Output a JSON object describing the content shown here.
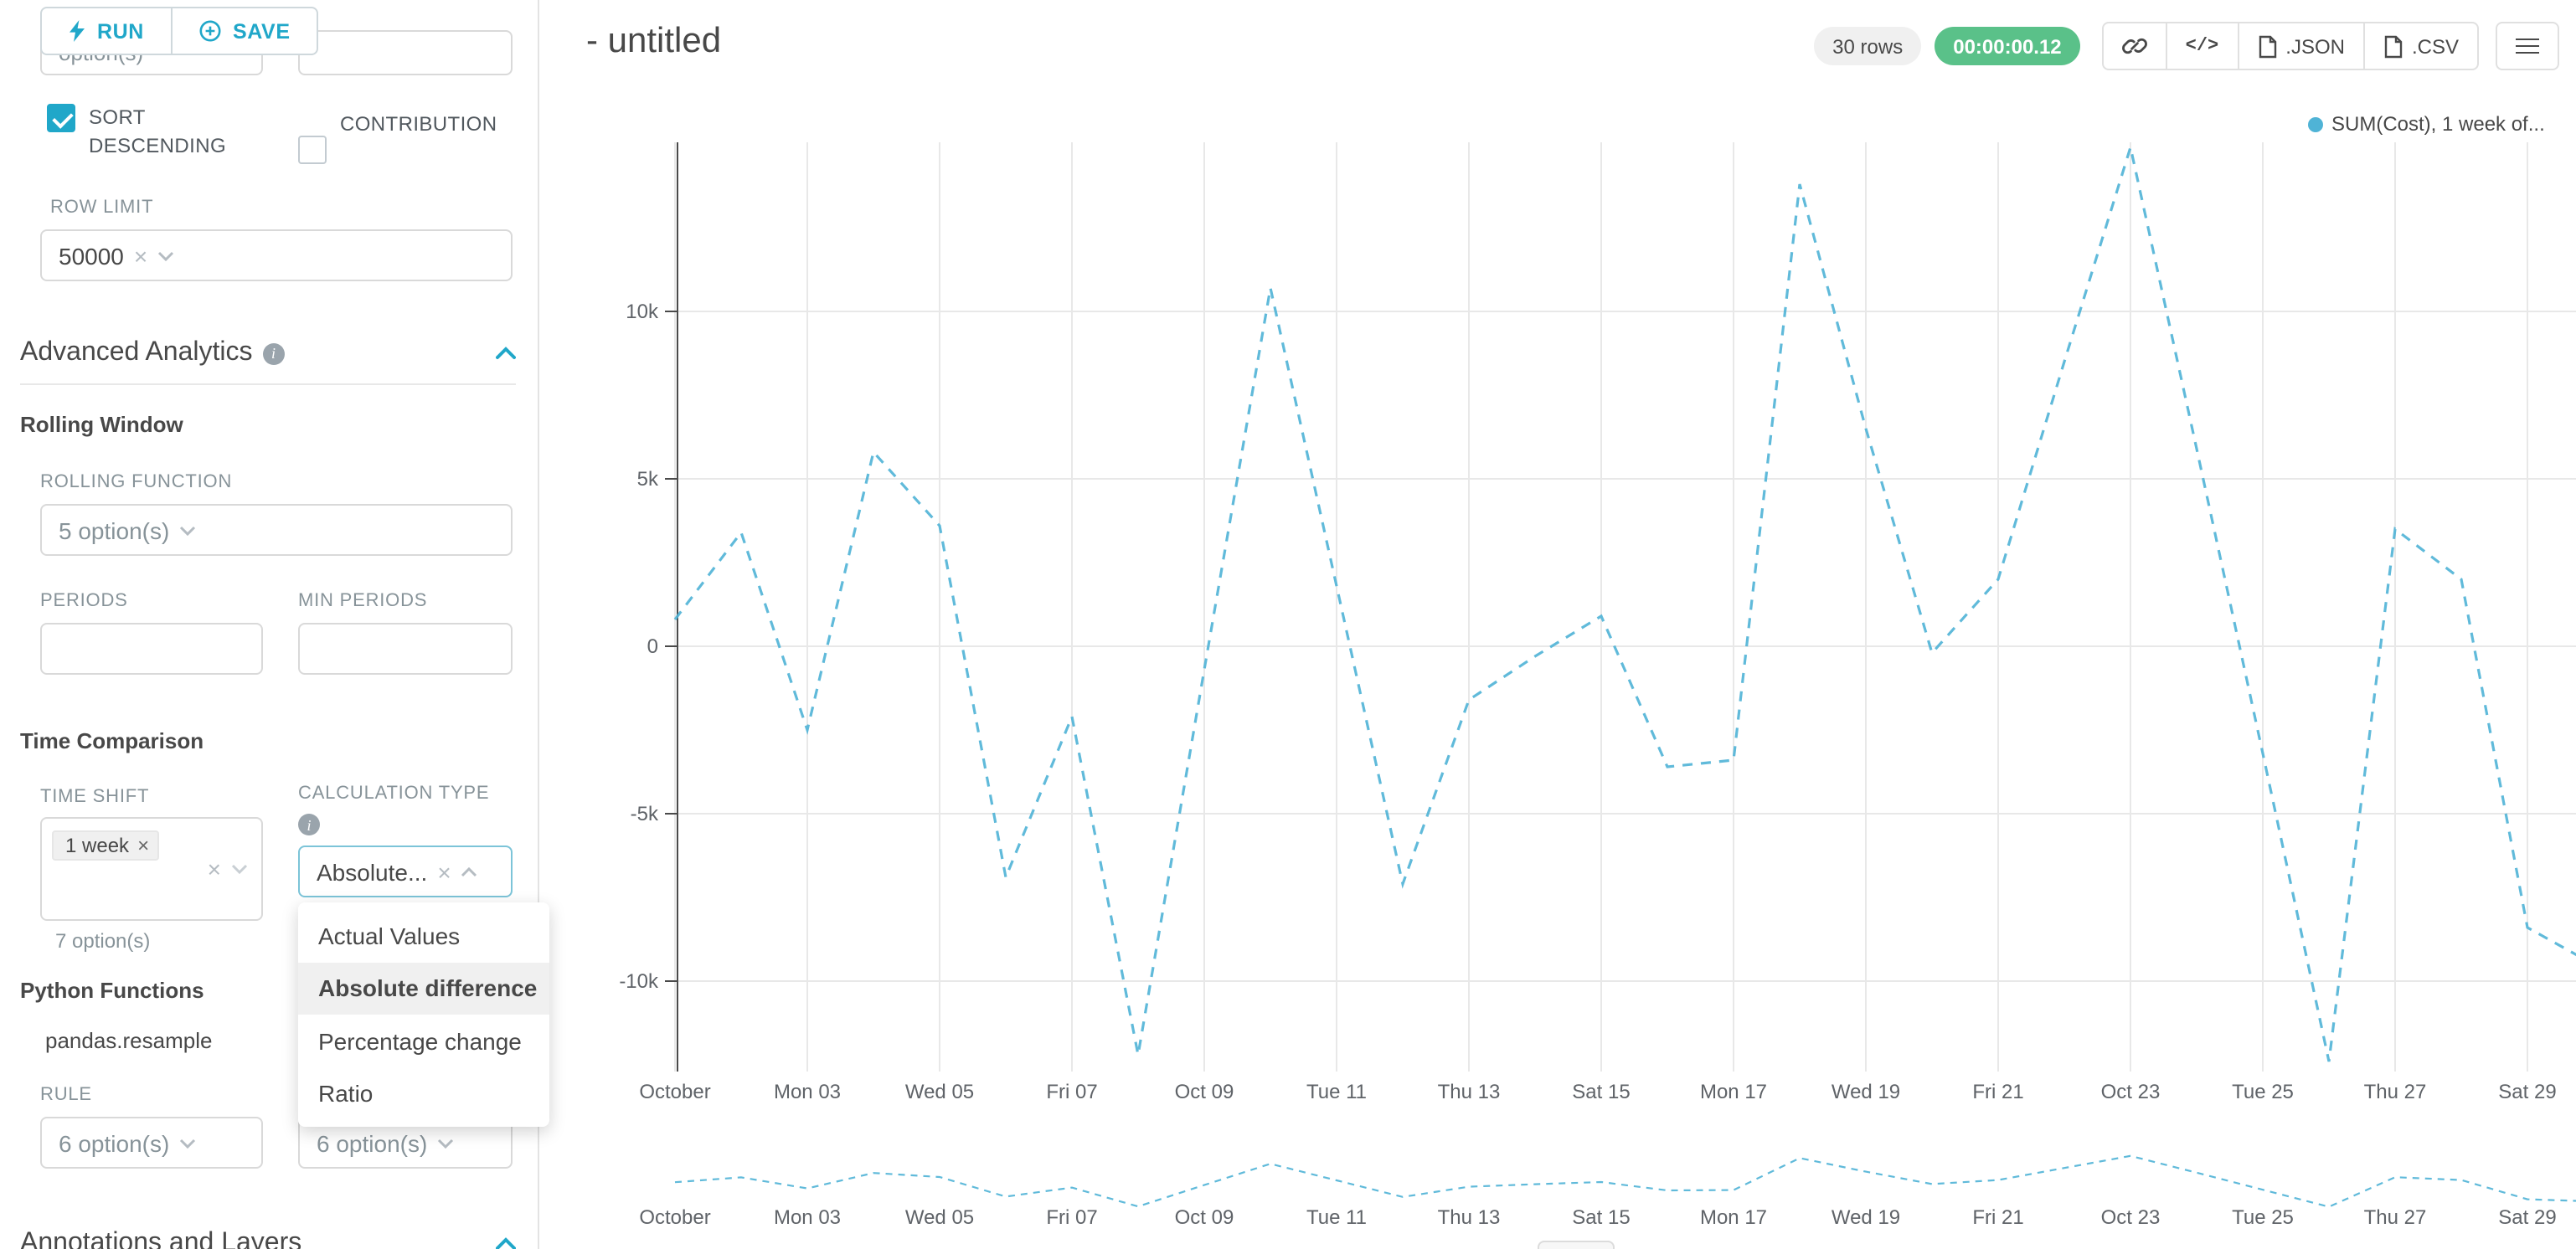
{
  "colors": {
    "accent": "#20a7c9",
    "timer_badge_bg": "#5ac189",
    "rows_badge_bg": "#f0f0f0"
  },
  "toolbar": {
    "run_label": "RUN",
    "save_label": "SAVE"
  },
  "sidebar": {
    "clipped_left_value": "option(s)",
    "sort_descending_label": "SORT DESCENDING",
    "contribution_label": "CONTRIBUTION",
    "row_limit_label": "ROW LIMIT",
    "row_limit_value": "50000",
    "advanced_analytics_title": "Advanced Analytics",
    "rolling_window_title": "Rolling Window",
    "rolling_function_label": "ROLLING FUNCTION",
    "rolling_function_value": "5 option(s)",
    "periods_label": "PERIODS",
    "min_periods_label": "MIN PERIODS",
    "time_comparison_title": "Time Comparison",
    "time_shift_label": "TIME SHIFT",
    "time_shift_tag": "1 week",
    "time_shift_helper": "7 option(s)",
    "calculation_type_label": "CALCULATION TYPE",
    "calculation_type_value": "Absolute...",
    "dropdown_options": [
      "Actual Values",
      "Absolute difference",
      "Percentage change",
      "Ratio"
    ],
    "dropdown_selected_index": 1,
    "python_functions_title": "Python Functions",
    "python_function_name": "pandas.resample",
    "rule_label": "RULE",
    "rule_value_left": "6 option(s)",
    "rule_value_right": "6 option(s)",
    "annotations_title": "Annotations and Layers"
  },
  "header": {
    "title": "- untitled",
    "rows_badge": "30 rows",
    "timer_badge": "00:00:00.12",
    "json_button": ".JSON",
    "csv_button": ".CSV"
  },
  "chart_data": {
    "type": "line",
    "title": "",
    "legend": [
      "SUM(Cost), 1 week of..."
    ],
    "legend_position": "top-right",
    "grid": true,
    "xlabel": "",
    "ylabel": "",
    "ylim": [
      -12700,
      15050
    ],
    "y_ticks": [
      10000,
      5000,
      0,
      -5000,
      -10000
    ],
    "y_tick_labels": [
      "10k",
      "5k",
      "0",
      "-5k",
      "-10k"
    ],
    "x_tick_labels": [
      "October",
      "Mon 03",
      "Wed 05",
      "Fri 07",
      "Oct 09",
      "Tue 11",
      "Thu 13",
      "Sat 15",
      "Mon 17",
      "Wed 19",
      "Fri 21",
      "Oct 23",
      "Tue 25",
      "Thu 27",
      "Sat 29"
    ],
    "has_mini_preview": true,
    "series": [
      {
        "name": "SUM(Cost), 1 week offset (absolute difference)",
        "style": "dashed",
        "color": "#4fb3d6",
        "x": [
          "Oct 01",
          "Oct 02",
          "Oct 03",
          "Oct 04",
          "Oct 05",
          "Oct 06",
          "Oct 07",
          "Oct 08",
          "Oct 09",
          "Oct 10",
          "Oct 11",
          "Oct 12",
          "Oct 13",
          "Oct 14",
          "Oct 15",
          "Oct 16",
          "Oct 17",
          "Oct 18",
          "Oct 19",
          "Oct 20",
          "Oct 21",
          "Oct 22",
          "Oct 23",
          "Oct 24",
          "Oct 25",
          "Oct 26",
          "Oct 27",
          "Oct 28",
          "Oct 29",
          "Oct 30"
        ],
        "values": [
          800,
          3400,
          -2500,
          5800,
          3600,
          -6900,
          -2100,
          -12200,
          -700,
          10700,
          1800,
          -7100,
          -1600,
          -300,
          900,
          -3600,
          -3400,
          13800,
          6500,
          -200,
          2000,
          8500,
          14900,
          5900,
          -3200,
          -12400,
          3500,
          2000,
          -8400,
          -9500
        ]
      }
    ]
  }
}
